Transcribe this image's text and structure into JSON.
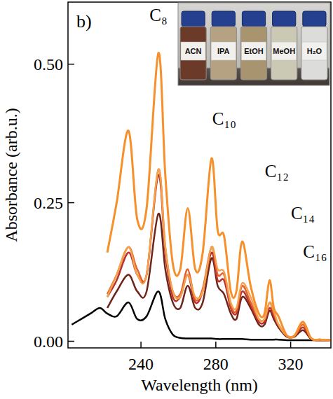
{
  "chart_data": {
    "type": "line",
    "panel": "b)",
    "xlabel": "Wavelength (nm)",
    "ylabel": "Absorbance (arb.u.)",
    "x": [
      203,
      208,
      213,
      218,
      222,
      227,
      233.3,
      238,
      243,
      249.3,
      253,
      257,
      261,
      265,
      269,
      273,
      277.7,
      281,
      284.4,
      288,
      291,
      294.1,
      298.6,
      303,
      306,
      308.7,
      311,
      313.5,
      318,
      322,
      326.6,
      331,
      336,
      341
    ],
    "xlim": [
      201,
      341.5
    ],
    "ylim": [
      -0.012,
      0.612
    ],
    "xticks": [
      240,
      280,
      320
    ],
    "yticks": [
      {
        "value": 0,
        "label": "0.00"
      },
      {
        "value": 0.25,
        "label": "0.25"
      },
      {
        "value": 0.5,
        "label": "0.50"
      }
    ],
    "series": [
      {
        "color": "#000000",
        "values": [
          0.03,
          0.04,
          0.05,
          0.06,
          0.05,
          0.045,
          0.07,
          0.04,
          0.045,
          0.09,
          0.04,
          0.012,
          0.006,
          0.005,
          0.005,
          0.005,
          0.005,
          0.004,
          0.004,
          0.004,
          0.004,
          0.004,
          0.003,
          0.003,
          0.003,
          0.003,
          0.003,
          0.003,
          0.002,
          0.002,
          0.002,
          0.002,
          0.002,
          0.002
        ]
      },
      {
        "color": "#6e2418",
        "values": [
          null,
          null,
          null,
          null,
          0.06,
          0.09,
          0.12,
          0.09,
          0.09,
          0.23,
          0.13,
          0.07,
          0.06,
          0.1,
          0.06,
          0.07,
          0.15,
          0.1,
          0.085,
          0.05,
          0.04,
          0.08,
          0.06,
          0.03,
          0.03,
          0.055,
          0.04,
          0.025,
          0.008,
          0.008,
          0.02,
          0.004,
          0.002,
          0.002
        ]
      },
      {
        "color": "#b8322a",
        "values": [
          null,
          null,
          null,
          null,
          0.08,
          0.11,
          0.16,
          0.12,
          0.12,
          0.3,
          0.16,
          0.08,
          0.08,
          0.12,
          0.07,
          0.09,
          0.16,
          0.11,
          0.11,
          0.06,
          0.05,
          0.09,
          0.065,
          0.035,
          0.035,
          0.06,
          0.045,
          0.028,
          0.009,
          0.009,
          0.025,
          0.004,
          0.002,
          0.002
        ]
      },
      {
        "color": "#e5602c",
        "values": [
          null,
          null,
          null,
          null,
          0.085,
          0.12,
          0.17,
          0.13,
          0.12,
          0.31,
          0.17,
          0.09,
          0.085,
          0.13,
          0.075,
          0.095,
          0.17,
          0.12,
          0.12,
          0.065,
          0.055,
          0.1,
          0.07,
          0.04,
          0.04,
          0.07,
          0.05,
          0.03,
          0.01,
          0.01,
          0.03,
          0.005,
          0.003,
          0.002
        ]
      },
      {
        "color": "#f5a24c",
        "values": [
          null,
          null,
          null,
          null,
          0.08,
          0.12,
          0.17,
          0.12,
          0.12,
          0.31,
          0.17,
          0.09,
          0.08,
          0.12,
          0.08,
          0.09,
          0.17,
          0.13,
          0.125,
          0.07,
          0.06,
          0.105,
          0.08,
          0.04,
          0.04,
          0.07,
          0.055,
          0.03,
          0.01,
          0.01,
          0.035,
          0.005,
          0.003,
          0.002
        ]
      },
      {
        "color": "#f7902a",
        "values": [
          null,
          null,
          null,
          null,
          0.16,
          0.25,
          0.38,
          0.22,
          0.24,
          0.52,
          0.3,
          0.14,
          0.13,
          0.24,
          0.13,
          0.16,
          0.33,
          0.2,
          0.19,
          0.09,
          0.09,
          0.18,
          0.1,
          0.05,
          0.05,
          0.11,
          0.06,
          0.045,
          0.01,
          0.01,
          0.035,
          0.005,
          0.003,
          0.002
        ]
      }
    ],
    "annotations": [
      {
        "text": "C₈",
        "x": 249.3,
        "y": 0.578
      },
      {
        "text": "C₁₀",
        "x": 284.5,
        "y": 0.391
      },
      {
        "text": "C₁₂",
        "x": 312.6,
        "y": 0.296
      },
      {
        "text": "C₁₄",
        "x": 326.5,
        "y": 0.22
      },
      {
        "text": "C₁₆",
        "x": 333,
        "y": 0.151
      }
    ],
    "inset": {
      "labels": [
        "ACN",
        "IPA",
        "EtOH",
        "MeOH",
        "H₂O"
      ],
      "colors": [
        "#6b3a28",
        "#b4a283",
        "#a8946e",
        "#cbc8b4",
        "#dcdcda"
      ]
    }
  }
}
